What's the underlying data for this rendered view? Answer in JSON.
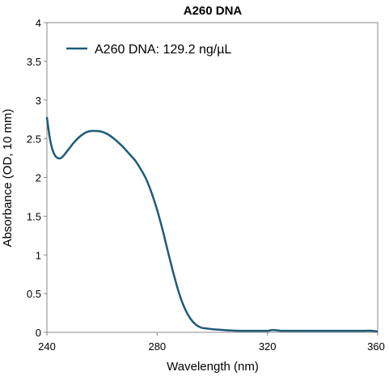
{
  "chart_data": {
    "type": "line",
    "title": "A260 DNA",
    "xlabel": "Wavelength (nm)",
    "ylabel": "Absorbance (OD, 10 mm)",
    "xlim": [
      240,
      360
    ],
    "ylim": [
      0,
      4
    ],
    "xticks": [
      240,
      280,
      320,
      360
    ],
    "xtick_labels": [
      "240",
      "280",
      "320",
      "360"
    ],
    "yticks": [
      0,
      0.5,
      1,
      1.5,
      2,
      2.5,
      3,
      3.5,
      4
    ],
    "ytick_labels": [
      "0",
      "0.5",
      "1",
      "1.5",
      "2",
      "2.5",
      "3",
      "3.5",
      "4"
    ],
    "grid": false,
    "legend": "top-left",
    "series": [
      {
        "name": "A260 DNA: 129.2 ng/µL",
        "color": "#1f5a78",
        "x": [
          240,
          241,
          242,
          243,
          244,
          245,
          246,
          248,
          250,
          252,
          254,
          256,
          258,
          260,
          262,
          264,
          266,
          268,
          270,
          272,
          274,
          276,
          278,
          280,
          282,
          284,
          286,
          288,
          290,
          292,
          294,
          296,
          298,
          300,
          302,
          304,
          306,
          310,
          315,
          320,
          322,
          325,
          330,
          335,
          340,
          345,
          350,
          355,
          358,
          360
        ],
        "y": [
          2.78,
          2.52,
          2.36,
          2.28,
          2.25,
          2.25,
          2.28,
          2.37,
          2.46,
          2.53,
          2.58,
          2.6,
          2.6,
          2.59,
          2.56,
          2.51,
          2.45,
          2.38,
          2.3,
          2.22,
          2.11,
          1.98,
          1.8,
          1.58,
          1.32,
          1.03,
          0.75,
          0.5,
          0.31,
          0.18,
          0.1,
          0.06,
          0.05,
          0.04,
          0.035,
          0.03,
          0.025,
          0.02,
          0.02,
          0.02,
          0.03,
          0.02,
          0.02,
          0.02,
          0.02,
          0.02,
          0.02,
          0.02,
          0.02,
          0.01
        ]
      }
    ]
  }
}
